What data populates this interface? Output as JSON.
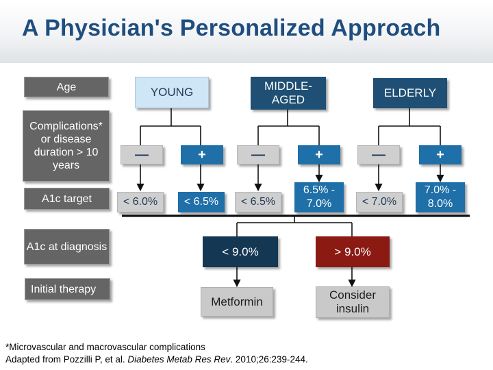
{
  "title": "A Physician's Personalized Approach",
  "row_labels": {
    "age": "Age",
    "complications": "Complications* or disease duration > 10 years",
    "a1c_target": "A1c target",
    "a1c_at_diagnosis": "A1c at diagnosis",
    "initial_therapy": "Initial therapy"
  },
  "age_groups": {
    "young": "YOUNG",
    "middle_aged": "MIDDLE-AGED",
    "elderly": "ELDERLY"
  },
  "complication_flags": {
    "young_minus": "—",
    "young_plus": "+",
    "middle_minus": "—",
    "middle_plus": "+",
    "elderly_minus": "—",
    "elderly_plus": "+"
  },
  "a1c_targets": {
    "young_no_comp": "< 6.0%",
    "young_comp": "< 6.5%",
    "middle_no_comp": "< 6.5%",
    "middle_comp": "6.5% - 7.0%",
    "elderly_no_comp": "< 7.0%",
    "elderly_comp": "7.0% - 8.0%"
  },
  "diagnosis_levels": {
    "low": "< 9.0%",
    "high": "> 9.0%"
  },
  "therapies": {
    "low": "Metformin",
    "high": "Consider insulin"
  },
  "colors": {
    "title": "#1f4e7e",
    "label_bg": "#656565",
    "young_bg": "#cfe6f7",
    "dark_blue": "#1f4f74",
    "bright_blue": "#1f6fa8",
    "navy": "#143754",
    "red": "#8b1a13",
    "grey": "#cfcfcf"
  },
  "footnotes": {
    "line1": "*Microvascular and macrovascular complications",
    "line2_prefix": "Adapted from Pozzilli P, et al. ",
    "line2_journal": "Diabetes Metab Res Rev",
    "line2_suffix": ". 2010;26:239-244."
  }
}
